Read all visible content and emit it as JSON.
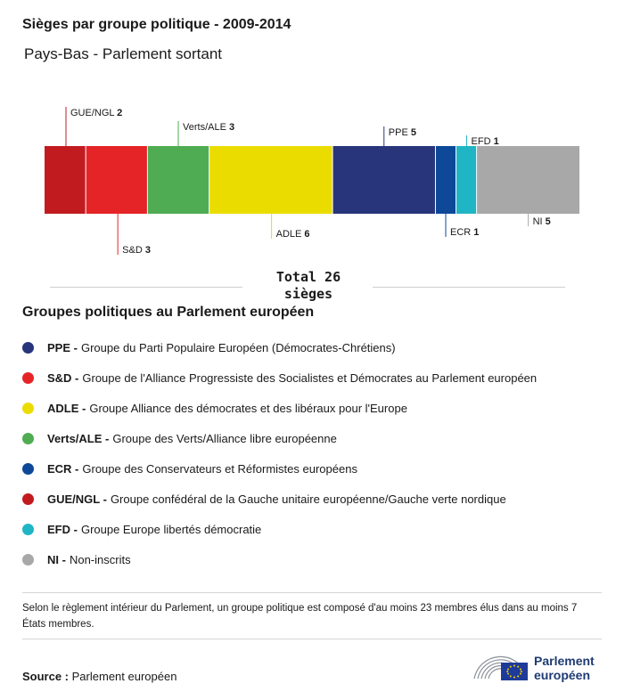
{
  "title": "Sièges par groupe politique - 2009-2014",
  "subtitle": "Pays-Bas - Parlement sortant",
  "chart_data": {
    "type": "bar",
    "orientation": "stacked-horizontal",
    "total_label_line1": "Total 26",
    "total_label_line2": "sièges",
    "total": 26,
    "segments": [
      {
        "name": "GUE/NGL",
        "value": 2,
        "color": "#c21b1f",
        "label_side": "top"
      },
      {
        "name": "S&D",
        "value": 3,
        "color": "#e52428",
        "label_side": "bottom"
      },
      {
        "name": "Verts/ALE",
        "value": 3,
        "color": "#50ac52",
        "label_side": "top"
      },
      {
        "name": "ADLE",
        "value": 6,
        "color": "#ebdc00",
        "label_side": "bottom"
      },
      {
        "name": "PPE",
        "value": 5,
        "color": "#28357b",
        "label_side": "top"
      },
      {
        "name": "ECR",
        "value": 1,
        "color": "#0e4899",
        "label_side": "bottom"
      },
      {
        "name": "EFD",
        "value": 1,
        "color": "#20b5c4",
        "label_side": "top"
      },
      {
        "name": "NI",
        "value": 5,
        "color": "#a8a8a8",
        "label_side": "bottom"
      }
    ]
  },
  "legend": {
    "title": "Groupes politiques au Parlement européen",
    "items": [
      {
        "abbr": "PPE -",
        "desc": "Groupe du Parti Populaire Européen (Démocrates-Chrétiens)",
        "color": "#28357b"
      },
      {
        "abbr": "S&D -",
        "desc": "Groupe de l'Alliance Progressiste des Socialistes et Démocrates au Parlement européen",
        "color": "#e52428"
      },
      {
        "abbr": "ADLE -",
        "desc": "Groupe Alliance des démocrates et des libéraux pour l'Europe",
        "color": "#ebdc00"
      },
      {
        "abbr": "Verts/ALE -",
        "desc": "Groupe des Verts/Alliance libre européenne",
        "color": "#50ac52"
      },
      {
        "abbr": "ECR -",
        "desc": "Groupe des Conservateurs et Réformistes européens",
        "color": "#0e4899"
      },
      {
        "abbr": "GUE/NGL -",
        "desc": "Groupe confédéral de la Gauche unitaire européenne/Gauche verte nordique",
        "color": "#c21b1f"
      },
      {
        "abbr": "EFD -",
        "desc": "Groupe Europe libertés démocratie",
        "color": "#20b5c4"
      },
      {
        "abbr": "NI -",
        "desc": "Non-inscrits",
        "color": "#a8a8a8"
      }
    ]
  },
  "note": "Selon le règlement intérieur du Parlement, un groupe politique est composé d'au moins 23 membres élus dans au moins 7 États membres.",
  "source": {
    "label": "Source :",
    "value": "Parlement européen"
  },
  "logo": {
    "line1": "Parlement",
    "line2": "européen"
  }
}
